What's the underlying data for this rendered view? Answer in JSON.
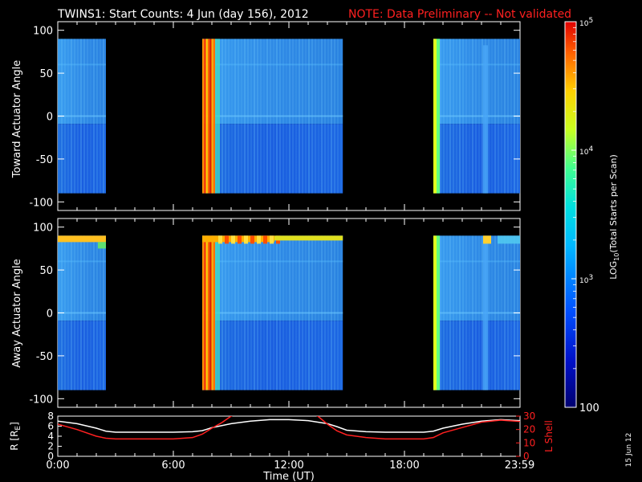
{
  "header": {
    "title": "TWINS1: Start Counts:  4 Jun (day 156), 2012",
    "note": "NOTE: Data Preliminary -- Not validated",
    "note_color": "#ff2020",
    "stamp": "15 Jun 12"
  },
  "colorbar": {
    "label_prefix": "LOG",
    "label_sub": "10",
    "label_rest": "(Total Starts per Scan)",
    "ticks": [
      {
        "value": 100,
        "text": "100"
      },
      {
        "value": 1000,
        "text": "10",
        "sup": "3"
      },
      {
        "value": 10000,
        "text": "10",
        "sup": "4"
      },
      {
        "value": 100000,
        "text": "10",
        "sup": "5"
      }
    ],
    "range": [
      100,
      100000
    ]
  },
  "chart_data": [
    {
      "type": "heatmap",
      "ylabel": "Toward Actuator Angle",
      "ylim": [
        -110,
        110
      ],
      "yticks": [
        100,
        50,
        0,
        -50,
        -100
      ],
      "xlim": [
        0,
        24
      ],
      "data_blocks": [
        {
          "t_start": 0.0,
          "t_end": 2.5,
          "angle_min": -90,
          "angle_max": 90,
          "level": "low"
        },
        {
          "t_start": 7.5,
          "t_end": 14.8,
          "angle_min": -90,
          "angle_max": 90,
          "level": "low"
        },
        {
          "t_start": 19.5,
          "t_end": 24.0,
          "angle_min": -90,
          "angle_max": 90,
          "level": "low"
        }
      ]
    },
    {
      "type": "heatmap",
      "ylabel": "Away Actuator Angle",
      "ylim": [
        -110,
        110
      ],
      "yticks": [
        100,
        50,
        0,
        -50,
        -100
      ],
      "xlim": [
        0,
        24
      ],
      "data_blocks": [
        {
          "t_start": 0.0,
          "t_end": 2.5,
          "angle_min": -90,
          "angle_max": 90,
          "level": "low"
        },
        {
          "t_start": 7.5,
          "t_end": 14.8,
          "angle_min": -90,
          "angle_max": 90,
          "level": "low"
        },
        {
          "t_start": 19.5,
          "t_end": 24.0,
          "angle_min": -90,
          "angle_max": 90,
          "level": "low"
        }
      ]
    },
    {
      "type": "line",
      "xlabel": "Time (UT)",
      "ylabel_left": "R [R",
      "ylabel_left_sub": "E",
      "ylabel_left_end": "]",
      "ylabel_right": "L Shell",
      "xlim": [
        0,
        24
      ],
      "ylim_left": [
        0,
        8
      ],
      "ylim_right": [
        0,
        30
      ],
      "yticks_left": [
        0,
        2,
        4,
        6,
        8
      ],
      "yticks_right": [
        0,
        10,
        20,
        30
      ],
      "xticks": [
        {
          "value": 0,
          "text": "0:00"
        },
        {
          "value": 6,
          "text": "6:00"
        },
        {
          "value": 12,
          "text": "12:00"
        },
        {
          "value": 18,
          "text": "18:00"
        },
        {
          "value": 23.98,
          "text": "23:59"
        }
      ],
      "series": [
        {
          "axis": "left",
          "color": "#ffffff",
          "x": [
            0,
            1,
            2,
            2.5,
            3,
            4,
            5,
            6,
            7,
            7.5,
            8,
            9,
            10,
            11,
            12,
            13,
            14,
            14.5,
            15,
            16,
            17,
            18,
            19,
            19.5,
            20,
            21,
            22,
            23,
            24
          ],
          "y": [
            7.0,
            6.5,
            5.6,
            5.0,
            4.8,
            4.8,
            4.8,
            4.8,
            4.9,
            5.1,
            5.7,
            6.5,
            7.0,
            7.3,
            7.3,
            7.1,
            6.5,
            5.9,
            5.2,
            4.9,
            4.8,
            4.8,
            4.8,
            5.0,
            5.6,
            6.4,
            7.0,
            7.3,
            7.1
          ]
        },
        {
          "axis": "right",
          "color": "#ff2020",
          "x": [
            0,
            1,
            2,
            2.5,
            3,
            4,
            5,
            6,
            7,
            7.5,
            8,
            8.5,
            9,
            9.5,
            13,
            13.5,
            14,
            14.5,
            15,
            16,
            17,
            18,
            19,
            19.5,
            20,
            21,
            22,
            23,
            24
          ],
          "y": [
            24,
            20,
            15,
            13.5,
            13,
            13,
            13,
            13,
            14,
            16.5,
            21,
            25,
            30,
            33,
            33,
            30,
            24,
            19,
            16,
            14,
            13,
            13,
            13,
            14,
            17.5,
            21.5,
            25.5,
            27,
            26
          ]
        }
      ]
    }
  ]
}
